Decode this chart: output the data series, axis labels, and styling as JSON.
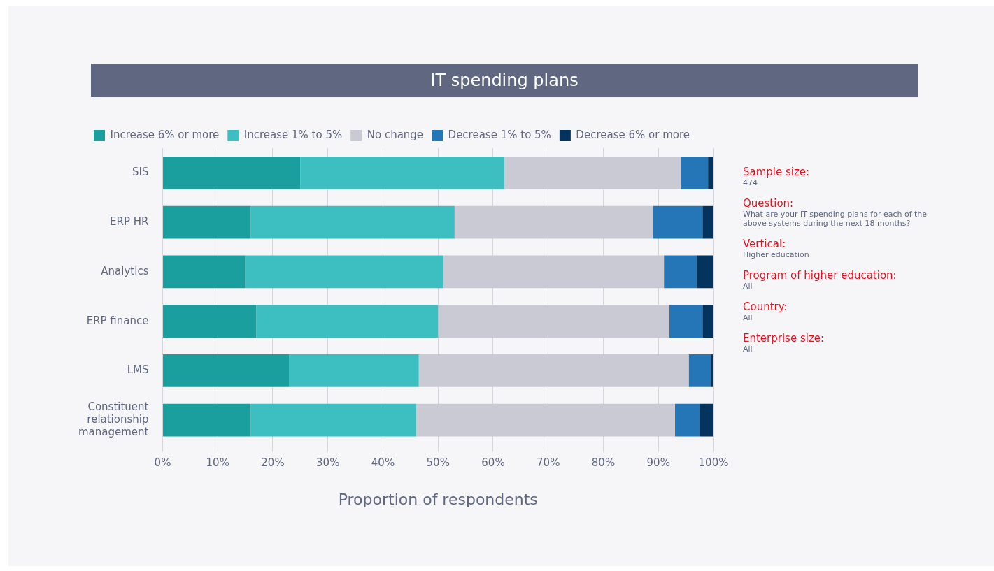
{
  "chart_data": {
    "type": "bar",
    "orientation": "horizontal",
    "stacked": true,
    "title": "IT spending plans",
    "xlabel": "Proportion of respondents",
    "categories": [
      "SIS",
      "ERP HR",
      "Analytics",
      "ERP finance",
      "LMS",
      "Constituent relationship management"
    ],
    "series": [
      {
        "name": "Increase 6% or more",
        "color": "#1a9e9e",
        "values": [
          25,
          16,
          15,
          17,
          23,
          16
        ]
      },
      {
        "name": "Increase 1% to 5%",
        "color": "#3dbfc1",
        "values": [
          37,
          37,
          36,
          33,
          23.5,
          30
        ]
      },
      {
        "name": "No change",
        "color": "#cacad4",
        "values": [
          32,
          36,
          40,
          42,
          49,
          47
        ]
      },
      {
        "name": "Decrease 1% to 5%",
        "color": "#2476b7",
        "values": [
          5,
          9,
          6,
          6,
          4,
          4.5
        ]
      },
      {
        "name": "Decrease 6% or more",
        "color": "#04335e",
        "values": [
          1,
          2,
          3,
          2,
          0.5,
          2.5
        ]
      }
    ],
    "xlim": [
      0,
      100
    ],
    "xticks": [
      {
        "value": 0,
        "label": "0%"
      },
      {
        "value": 10,
        "label": "10%"
      },
      {
        "value": 20,
        "label": "20%"
      },
      {
        "value": 30,
        "label": "30%"
      },
      {
        "value": 40,
        "label": "40%"
      },
      {
        "value": 50,
        "label": "50%"
      },
      {
        "value": 60,
        "label": "60%"
      },
      {
        "value": 70,
        "label": "70%"
      },
      {
        "value": 80,
        "label": "80%"
      },
      {
        "value": 90,
        "label": "90%"
      },
      {
        "value": 100,
        "label": "100%"
      }
    ],
    "grid": "x",
    "legend": "top",
    "annotations": [
      "Sample size:",
      "474",
      "Question:",
      "What are your IT spending plans for each of the above systems during the next 18 months?",
      "Vertical:",
      "Higher education",
      "Program of higher education:",
      "All",
      "Country:",
      "All",
      "Enterprise size:",
      "All"
    ]
  }
}
